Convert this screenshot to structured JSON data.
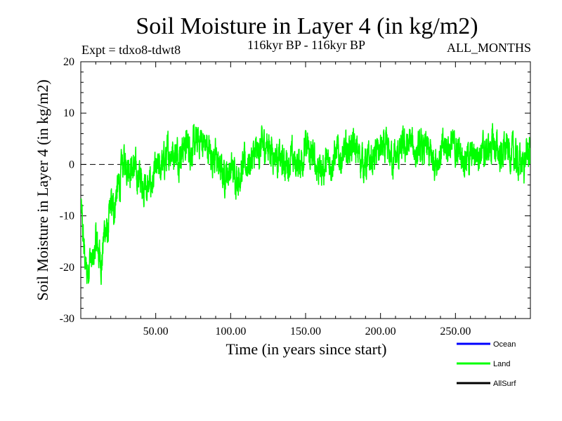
{
  "chart_data": {
    "type": "line",
    "title": "Soil Moisture in Layer 4 (in kg/m2)",
    "subtitle_left": "Expt = tdxo8-tdwt8",
    "subtitle_center": "116kyr BP - 116kyr BP",
    "subtitle_right": "ALL_MONTHS",
    "xlabel": "Time (in years since start)",
    "ylabel": "Soil Moisture in Layer 4 (in kg/m2)",
    "xlim": [
      0,
      300
    ],
    "ylim": [
      -30,
      20
    ],
    "x_ticks": [
      50,
      100,
      150,
      200,
      250
    ],
    "x_tick_labels": [
      "50.00",
      "100.00",
      "150.00",
      "200.00",
      "250.00"
    ],
    "y_ticks": [
      -30,
      -20,
      -10,
      0,
      10,
      20
    ],
    "y_tick_labels": [
      "-30",
      "-20",
      "-10",
      "0",
      "10",
      "20"
    ],
    "zero_line": true,
    "grid": false,
    "legend_position": "bottom-right",
    "series": [
      {
        "name": "Ocean",
        "color": "#0000ff",
        "values": []
      },
      {
        "name": "Land",
        "color": "#00ff00",
        "x": [
          0,
          2,
          4,
          6,
          8,
          10,
          12,
          14,
          16,
          18,
          20,
          22,
          24,
          26,
          28,
          30,
          35,
          40,
          45,
          50,
          55,
          60,
          65,
          70,
          75,
          80,
          85,
          90,
          95,
          100,
          105,
          110,
          115,
          120,
          125,
          130,
          135,
          140,
          145,
          150,
          155,
          160,
          165,
          170,
          175,
          180,
          185,
          190,
          195,
          200,
          205,
          210,
          215,
          220,
          225,
          230,
          235,
          240,
          245,
          250,
          255,
          260,
          265,
          270,
          275,
          280,
          285,
          290,
          295,
          298
        ],
        "values": [
          -8,
          -16,
          -22,
          -18,
          -20,
          -15,
          -17,
          -19,
          -12,
          -14,
          -8,
          -9,
          -5,
          -4,
          0,
          1,
          -1,
          -3,
          -5,
          -2,
          0,
          3,
          2,
          4,
          3,
          5,
          3,
          1,
          -2,
          -1,
          -2,
          0,
          1,
          3,
          4,
          2,
          0,
          1,
          0,
          3,
          1,
          -1,
          0,
          2,
          1,
          4,
          2,
          0,
          1,
          3,
          2,
          1,
          3,
          4,
          2,
          3,
          1,
          2,
          4,
          3,
          2,
          1,
          3,
          2,
          4,
          2,
          3,
          1,
          0,
          2
        ]
      },
      {
        "name": "AllSurf",
        "color": "#000000",
        "values": []
      }
    ]
  }
}
